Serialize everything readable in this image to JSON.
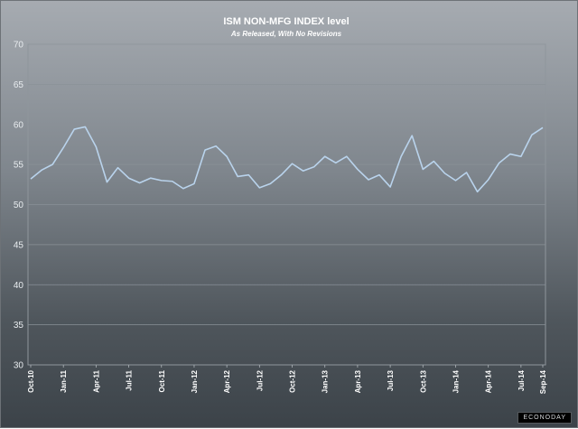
{
  "chart_data": {
    "type": "line",
    "title": "ISM NON-MFG INDEX level",
    "subtitle": "As Released, With No Revisions",
    "xlabel": "",
    "ylabel": "",
    "ylim": [
      30,
      70
    ],
    "yticks": [
      "30",
      "35",
      "40",
      "45",
      "50",
      "55",
      "60",
      "65",
      "70"
    ],
    "grid": true,
    "line_color": "#b9d3ec",
    "x": [
      "Oct-10",
      "Nov-10",
      "Dec-10",
      "Jan-11",
      "Feb-11",
      "Mar-11",
      "Apr-11",
      "May-11",
      "Jun-11",
      "Jul-11",
      "Aug-11",
      "Sep-11",
      "Oct-11",
      "Nov-11",
      "Dec-11",
      "Jan-12",
      "Feb-12",
      "Mar-12",
      "Apr-12",
      "May-12",
      "Jun-12",
      "Jul-12",
      "Aug-12",
      "Sep-12",
      "Oct-12",
      "Nov-12",
      "Dec-12",
      "Jan-13",
      "Feb-13",
      "Mar-13",
      "Apr-13",
      "May-13",
      "Jun-13",
      "Jul-13",
      "Aug-13",
      "Sep-13",
      "Oct-13",
      "Nov-13",
      "Dec-13",
      "Jan-14",
      "Feb-14",
      "Mar-14",
      "Apr-14",
      "May-14",
      "Jun-14",
      "Jul-14",
      "Aug-14",
      "Sep-14"
    ],
    "xtick_labels": [
      "Oct-10",
      "Jan-11",
      "Apr-11",
      "Jul-11",
      "Oct-11",
      "Jan-12",
      "Apr-12",
      "Jul-12",
      "Oct-12",
      "Jan-13",
      "Apr-13",
      "Jul-13",
      "Oct-13",
      "Jan-14",
      "Apr-14",
      "Jul-14",
      "Sep-14"
    ],
    "series": [
      {
        "values": [
          53.2,
          54.3,
          55.0,
          57.1,
          59.4,
          59.7,
          57.2,
          52.8,
          54.6,
          53.3,
          52.7,
          53.3,
          53.0,
          52.9,
          52.0,
          52.6,
          56.8,
          57.3,
          56.0,
          53.5,
          53.7,
          52.1,
          52.6,
          53.7,
          55.1,
          54.2,
          54.7,
          56.0,
          55.2,
          56.0,
          54.4,
          53.1,
          53.7,
          52.2,
          56.0,
          58.6,
          54.4,
          55.4,
          53.9,
          53.0,
          54.0,
          51.6,
          53.1,
          55.2,
          56.3,
          56.0,
          58.7,
          59.6
        ]
      }
    ]
  },
  "logo_text": "ECONODAY"
}
